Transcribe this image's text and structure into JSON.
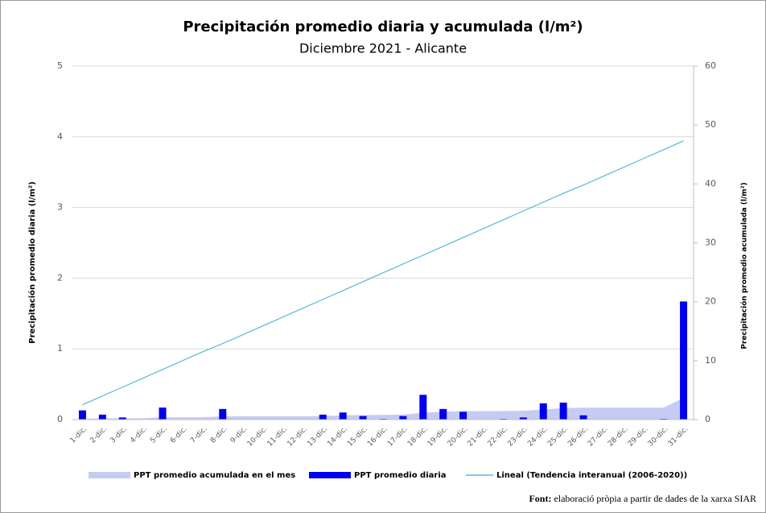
{
  "chart_data": {
    "type": "bar-area-line",
    "title": "Precipitación promedio diaria y acumulada (l/m²)",
    "subtitle": "Diciembre 2021 - Alicante",
    "y_label": "Precipitación promedio diaria (l/m²)",
    "y2_label": "Precipitación promedio acumulada (l/m²)",
    "categories": [
      "1-dic.",
      "2-dic.",
      "3-dic.",
      "4-dic.",
      "5-dic.",
      "6-dic.",
      "7-dic.",
      "8-dic.",
      "9-dic.",
      "10-dic.",
      "11-dic.",
      "12-dic.",
      "13-dic.",
      "14-dic.",
      "15-dic.",
      "16-dic.",
      "17-dic.",
      "18-dic.",
      "19-dic.",
      "20-dic.",
      "21-dic.",
      "22-dic.",
      "23-dic.",
      "24-dic.",
      "25-dic.",
      "26-dic.",
      "27-dic.",
      "28-dic.",
      "29-dic.",
      "30-dic.",
      "31-dic."
    ],
    "series": [
      {
        "name": "PPT promedio acumulada en el mes",
        "type": "area",
        "axis": "y2",
        "color": "#c5cbf3",
        "values": [
          0.13,
          0.2,
          0.23,
          0.23,
          0.4,
          0.4,
          0.4,
          0.55,
          0.55,
          0.55,
          0.55,
          0.55,
          0.62,
          0.72,
          0.77,
          0.78,
          0.83,
          1.18,
          1.33,
          1.44,
          1.44,
          1.45,
          1.48,
          1.71,
          1.95,
          2.01,
          2.01,
          2.01,
          2.01,
          2.02,
          3.69
        ]
      },
      {
        "name": "PPT promedio diaria",
        "type": "bar",
        "axis": "y",
        "color": "#0000ee",
        "values": [
          0.13,
          0.07,
          0.03,
          0,
          0.17,
          0,
          0,
          0.15,
          0,
          0,
          0,
          0,
          0.07,
          0.1,
          0.05,
          0.01,
          0.05,
          0.35,
          0.15,
          0.11,
          0,
          0.01,
          0.03,
          0.23,
          0.24,
          0.06,
          0,
          0,
          0,
          0.01,
          1.67
        ]
      },
      {
        "name": "Lineal (Tendencia interanual (2006-2020))",
        "type": "line",
        "axis": "y2",
        "color": "#5bb7d6",
        "values": [
          2.5,
          4.0,
          5.5,
          7.0,
          8.5,
          10.0,
          11.5,
          12.9,
          14.4,
          15.9,
          17.4,
          18.9,
          20.4,
          21.9,
          23.4,
          24.9,
          26.4,
          27.9,
          29.4,
          30.9,
          32.4,
          33.9,
          35.4,
          36.9,
          38.4,
          39.8,
          41.3,
          42.8,
          44.3,
          45.8,
          47.3
        ]
      }
    ],
    "ylim": [
      0,
      5
    ],
    "yticks": [
      0,
      1,
      2,
      3,
      4,
      5
    ],
    "y2lim": [
      0,
      60
    ],
    "y2ticks": [
      0,
      10,
      20,
      30,
      40,
      50,
      60
    ],
    "grid": true,
    "legend": "bottom",
    "source_label": "Font:",
    "source": "elaboració pròpia a partir de dades de la xarxa SIAR"
  }
}
